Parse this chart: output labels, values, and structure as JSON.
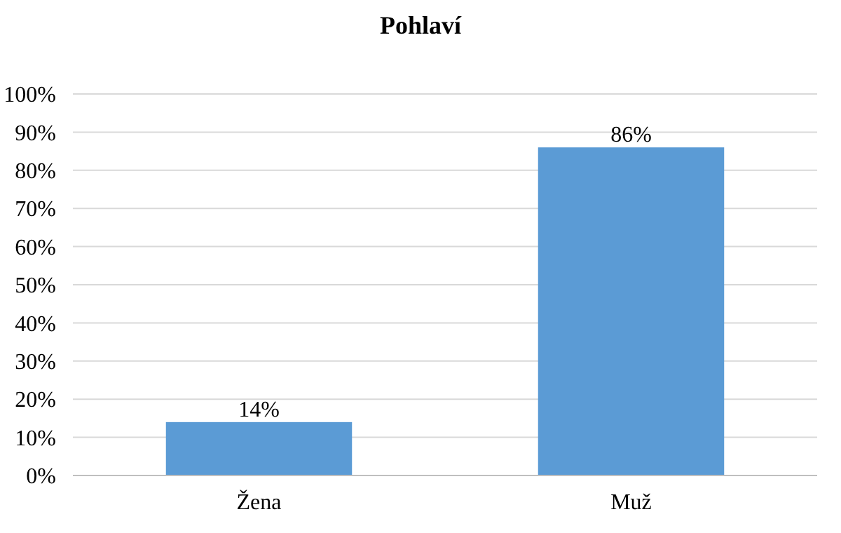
{
  "chart_data": {
    "type": "bar",
    "title": "Pohlaví",
    "categories": [
      "Žena",
      "Muž"
    ],
    "values": [
      14,
      86
    ],
    "value_labels": [
      "14%",
      "86%"
    ],
    "color": "#5b9bd5",
    "ylim": [
      0,
      100
    ],
    "yticks": [
      {
        "value": 0,
        "label": "0%"
      },
      {
        "value": 10,
        "label": "10%"
      },
      {
        "value": 20,
        "label": "20%"
      },
      {
        "value": 30,
        "label": "30%"
      },
      {
        "value": 40,
        "label": "40%"
      },
      {
        "value": 50,
        "label": "50%"
      },
      {
        "value": 60,
        "label": "60%"
      },
      {
        "value": 70,
        "label": "70%"
      },
      {
        "value": 80,
        "label": "80%"
      },
      {
        "value": 90,
        "label": "90%"
      },
      {
        "value": 100,
        "label": "100%"
      }
    ],
    "grid": "y"
  }
}
